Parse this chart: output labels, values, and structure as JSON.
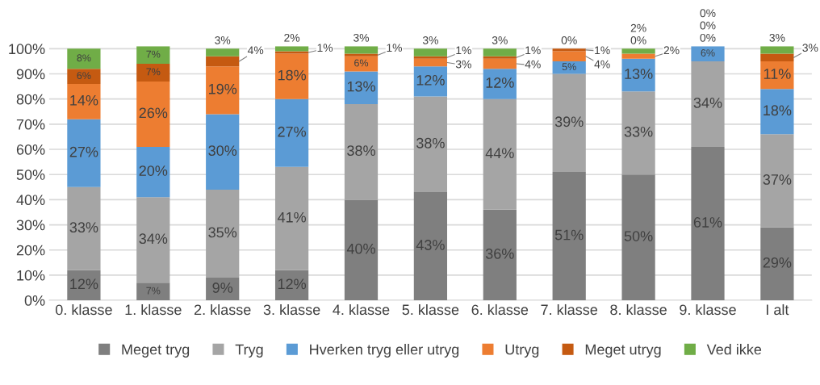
{
  "chart_data": {
    "type": "bar",
    "stacked": true,
    "categories": [
      "0. klasse",
      "1. klasse",
      "2. klasse",
      "3. klasse",
      "4. klasse",
      "5. klasse",
      "6. klasse",
      "7. klasse",
      "8. klasse",
      "9. klasse",
      "I alt"
    ],
    "series": [
      {
        "name": "Meget tryg",
        "color": "#7f7f7f",
        "values": [
          12,
          7,
          9,
          12,
          40,
          43,
          36,
          51,
          50,
          61,
          29
        ],
        "value_labels": [
          "12%",
          "7%",
          "9%",
          "12%",
          "40%",
          "43%",
          "36%",
          "51%",
          "50%",
          "61%",
          "29%"
        ]
      },
      {
        "name": "Tryg",
        "color": "#a5a5a5",
        "values": [
          33,
          34,
          35,
          41,
          38,
          38,
          44,
          39,
          33,
          34,
          37
        ],
        "value_labels": [
          "33%",
          "34%",
          "35%",
          "41%",
          "38%",
          "38%",
          "44%",
          "39%",
          "33%",
          "34%",
          "37%"
        ]
      },
      {
        "name": "Hverken tryg eller utryg",
        "color": "#5b9bd5",
        "values": [
          27,
          20,
          30,
          27,
          13,
          12,
          12,
          5,
          13,
          6,
          18
        ],
        "value_labels": [
          "27%",
          "20%",
          "30%",
          "27%",
          "13%",
          "12%",
          "12%",
          "5%",
          "13%",
          "6%",
          "18%"
        ]
      },
      {
        "name": "Utryg",
        "color": "#ed7d31",
        "values": [
          14,
          26,
          19,
          18,
          6,
          3,
          4,
          4,
          2,
          0,
          11
        ],
        "value_labels": [
          "14%",
          "26%",
          "19%",
          "18%",
          "6%",
          "3%",
          "4%",
          "4%",
          "2%",
          "0%",
          "11%"
        ]
      },
      {
        "name": "Meget utryg",
        "color": "#c55a11",
        "values": [
          6,
          7,
          4,
          1,
          1,
          1,
          1,
          1,
          0,
          0,
          3
        ],
        "value_labels": [
          "6%",
          "7%",
          "4%",
          "1%",
          "1%",
          "1%",
          "1%",
          "1%",
          "0%",
          "0%",
          "3%"
        ]
      },
      {
        "name": "Ved ikke",
        "color": "#70ad47",
        "values": [
          8,
          7,
          3,
          2,
          3,
          3,
          3,
          0,
          2,
          0,
          3
        ],
        "value_labels": [
          "8%",
          "7%",
          "3%",
          "2%",
          "3%",
          "3%",
          "3%",
          "0%",
          "2%",
          "0%",
          "3%"
        ]
      }
    ],
    "ylim": [
      0,
      101
    ],
    "yticks": [
      {
        "value": 0,
        "label": "0%"
      },
      {
        "value": 10,
        "label": "10%"
      },
      {
        "value": 20,
        "label": "20%"
      },
      {
        "value": 30,
        "label": "30%"
      },
      {
        "value": 40,
        "label": "40%"
      },
      {
        "value": 50,
        "label": "50%"
      },
      {
        "value": 60,
        "label": "60%"
      },
      {
        "value": 70,
        "label": "70%"
      },
      {
        "value": 80,
        "label": "80%"
      },
      {
        "value": 90,
        "label": "90%"
      },
      {
        "value": 100,
        "label": "100%"
      }
    ],
    "grid": "y",
    "legend": "bottom"
  }
}
